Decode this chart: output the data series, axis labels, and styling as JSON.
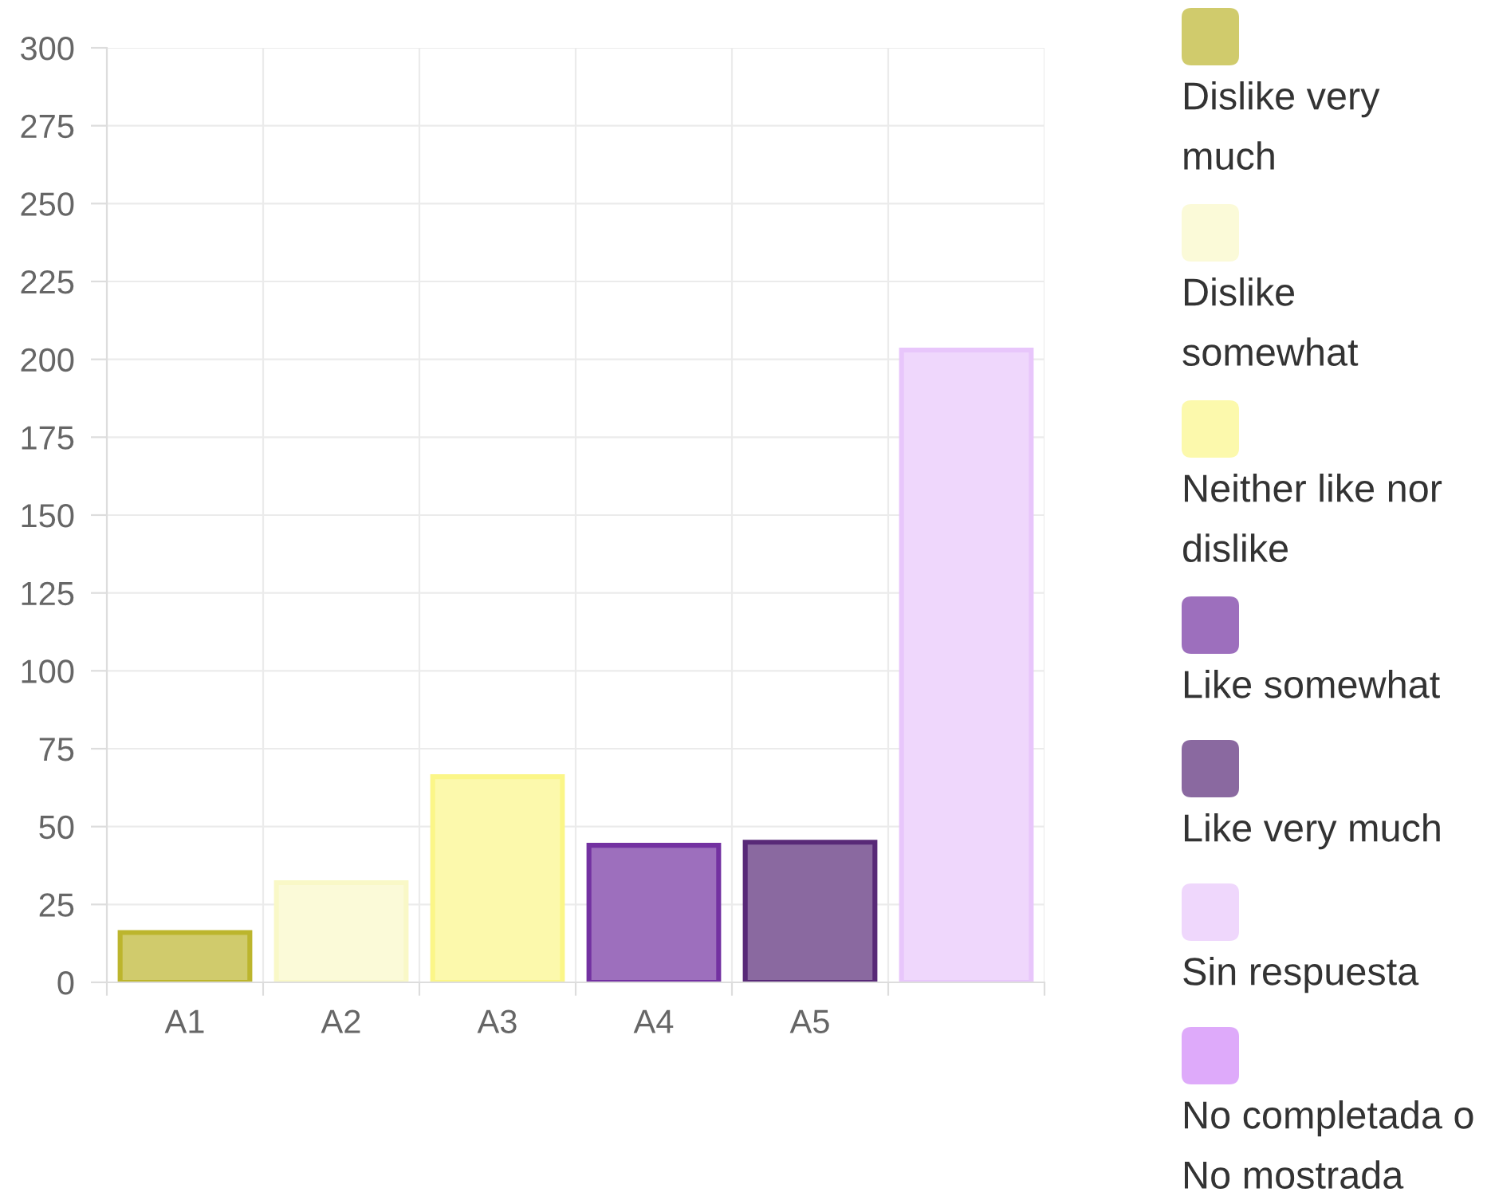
{
  "chart_data": {
    "type": "bar",
    "stacked": true,
    "categories": [
      "A1",
      "A2",
      "A3",
      "A4",
      "A5",
      null
    ],
    "series": [
      {
        "name": "Dislike very much",
        "color": "#d0cb6c",
        "values": [
          16,
          null,
          null,
          null,
          null,
          null
        ]
      },
      {
        "name": "Dislike somewhat",
        "color": "#fbfad8",
        "values": [
          null,
          32,
          null,
          null,
          null,
          null
        ]
      },
      {
        "name": "Neither like nor dislike",
        "color": "#fcf9ac",
        "values": [
          null,
          null,
          66,
          null,
          null,
          null
        ]
      },
      {
        "name": "Like somewhat",
        "color": "#9d6fbd",
        "values": [
          null,
          null,
          null,
          44,
          null,
          null
        ]
      },
      {
        "name": "Like very much",
        "color": "#8a69a0",
        "values": [
          null,
          null,
          null,
          null,
          45,
          null
        ]
      },
      {
        "name": "Sin respuesta",
        "color": "#efd7fc",
        "values": [
          null,
          null,
          null,
          null,
          null,
          203
        ]
      },
      {
        "name": "No completada o No mostrada",
        "color": "#deaafa",
        "values": [
          null,
          null,
          null,
          null,
          null,
          null
        ]
      }
    ],
    "ylim": [
      0,
      300
    ],
    "yticks": [
      0,
      25,
      50,
      75,
      100,
      125,
      150,
      175,
      200,
      225,
      250,
      275,
      300
    ],
    "grid": true,
    "legend": "right"
  }
}
